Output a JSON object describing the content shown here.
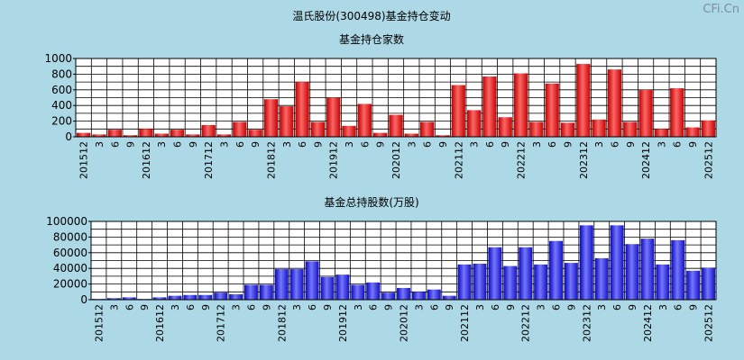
{
  "page_title": "温氏股份(300498)基金持仓变动",
  "watermark": "CFi.Cn",
  "chart_data": [
    {
      "type": "bar",
      "title": "基金持仓家数",
      "ylim": [
        0,
        1000
      ],
      "yticks": [
        0,
        200,
        400,
        600,
        800,
        1000
      ],
      "grid": true,
      "bar_color": "#e02020",
      "categories": [
        "201512",
        "3",
        "6",
        "9",
        "201612",
        "3",
        "6",
        "9",
        "201712",
        "3",
        "6",
        "9",
        "201812",
        "3",
        "6",
        "9",
        "201912",
        "3",
        "6",
        "9",
        "202012",
        "3",
        "6",
        "9",
        "202112",
        "3",
        "6",
        "9",
        "202212",
        "3",
        "6",
        "9",
        "202312",
        "3",
        "6",
        "9",
        "202412",
        "3",
        "6",
        "9",
        "202512"
      ],
      "values": [
        50,
        30,
        90,
        20,
        100,
        40,
        90,
        30,
        150,
        30,
        190,
        90,
        480,
        390,
        700,
        190,
        500,
        140,
        420,
        50,
        280,
        40,
        190,
        20,
        660,
        340,
        770,
        250,
        810,
        190,
        680,
        180,
        930,
        220,
        860,
        190,
        600,
        100,
        620,
        120,
        210
      ]
    },
    {
      "type": "bar",
      "title": "基金总持股数(万股)",
      "ylim": [
        0,
        100000
      ],
      "yticks": [
        0,
        20000,
        40000,
        60000,
        80000,
        100000
      ],
      "grid": true,
      "bar_color": "#3030e0",
      "categories": [
        "201512",
        "3",
        "6",
        "9",
        "201612",
        "3",
        "6",
        "9",
        "201712",
        "3",
        "6",
        "9",
        "201812",
        "3",
        "6",
        "9",
        "201912",
        "3",
        "6",
        "9",
        "202012",
        "3",
        "6",
        "9",
        "202112",
        "3",
        "6",
        "9",
        "202212",
        "3",
        "6",
        "9",
        "202312",
        "3",
        "6",
        "9",
        "202412",
        "3",
        "6",
        "9",
        "202512"
      ],
      "values": [
        1000,
        2000,
        3000,
        1000,
        3000,
        5000,
        6000,
        6000,
        9000,
        7000,
        19000,
        19000,
        39000,
        39000,
        49000,
        29000,
        32000,
        19000,
        22000,
        9000,
        15000,
        10000,
        13000,
        5000,
        45000,
        46000,
        67000,
        43000,
        67000,
        45000,
        75000,
        47000,
        95000,
        53000,
        95000,
        71000,
        78000,
        45000,
        76000,
        37000,
        41000
      ]
    }
  ]
}
